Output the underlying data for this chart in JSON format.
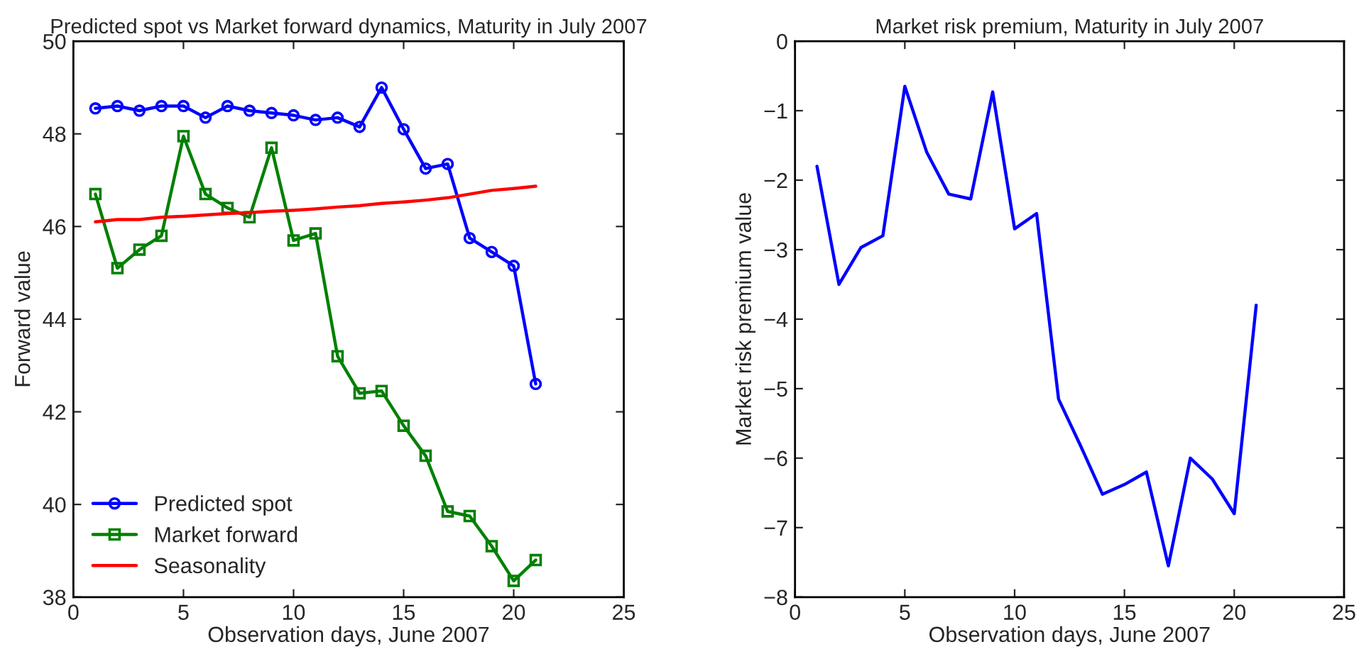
{
  "chart_data": [
    {
      "type": "line",
      "title": "Predicted spot vs Market forward dynamics, Maturity in July 2007",
      "xlabel": "Observation days, June 2007",
      "ylabel": "Forward value",
      "x": [
        1,
        2,
        3,
        4,
        5,
        6,
        7,
        8,
        9,
        10,
        11,
        12,
        13,
        14,
        15,
        16,
        17,
        18,
        19,
        20,
        21
      ],
      "series": [
        {
          "name": "Predicted spot",
          "color": "#0000ff",
          "marker": "circle",
          "values": [
            48.55,
            48.6,
            48.5,
            48.6,
            48.6,
            48.35,
            48.6,
            48.5,
            48.45,
            48.4,
            48.3,
            48.35,
            48.15,
            49.0,
            48.1,
            47.25,
            47.35,
            45.75,
            45.45,
            45.15,
            42.6
          ]
        },
        {
          "name": "Market forward",
          "color": "#008000",
          "marker": "square",
          "values": [
            46.7,
            45.1,
            45.5,
            45.8,
            47.95,
            46.7,
            46.4,
            46.2,
            47.7,
            45.7,
            45.85,
            43.2,
            42.4,
            42.45,
            41.7,
            41.05,
            39.85,
            39.75,
            39.1,
            38.35,
            38.8
          ]
        },
        {
          "name": "Seasonality",
          "color": "#ff0000",
          "marker": "none",
          "values": [
            46.1,
            46.15,
            46.15,
            46.2,
            46.22,
            46.25,
            46.28,
            46.3,
            46.33,
            46.35,
            46.38,
            46.42,
            46.45,
            46.5,
            46.53,
            46.57,
            46.62,
            46.7,
            46.78,
            46.82,
            46.87
          ]
        }
      ],
      "xlim": [
        0,
        25
      ],
      "xticks": [
        0,
        5,
        10,
        15,
        20,
        25
      ],
      "ylim": [
        38,
        50
      ],
      "yticks": [
        38,
        40,
        42,
        44,
        46,
        48,
        50
      ],
      "grid": false,
      "legend": "bottom left",
      "line_style": "solid"
    },
    {
      "type": "line",
      "title": "Market risk premium, Maturity in July 2007",
      "xlabel": "Observation days, June 2007",
      "ylabel": "Market risk premium value",
      "x": [
        1,
        2,
        3,
        4,
        5,
        6,
        7,
        8,
        9,
        10,
        11,
        12,
        13,
        14,
        15,
        16,
        17,
        18,
        19,
        20,
        21
      ],
      "series": [
        {
          "color": "#0000ff",
          "values": [
            -1.8,
            -3.5,
            -2.97,
            -2.8,
            -0.65,
            -1.6,
            -2.2,
            -2.27,
            -0.73,
            -2.7,
            -2.48,
            -5.15,
            -5.82,
            -6.52,
            -6.38,
            -6.2,
            -7.55,
            -6.0,
            -6.3,
            -6.8,
            -3.8
          ]
        }
      ],
      "xlim": [
        0,
        25
      ],
      "xticks": [
        0,
        5,
        10,
        15,
        20,
        25
      ],
      "ylim": [
        -8,
        0
      ],
      "yticks": [
        -8,
        -7,
        -6,
        -5,
        -4,
        -3,
        -2,
        -1,
        0
      ],
      "grid": false,
      "legend": false,
      "marker": "none",
      "line_style": "solid"
    }
  ]
}
